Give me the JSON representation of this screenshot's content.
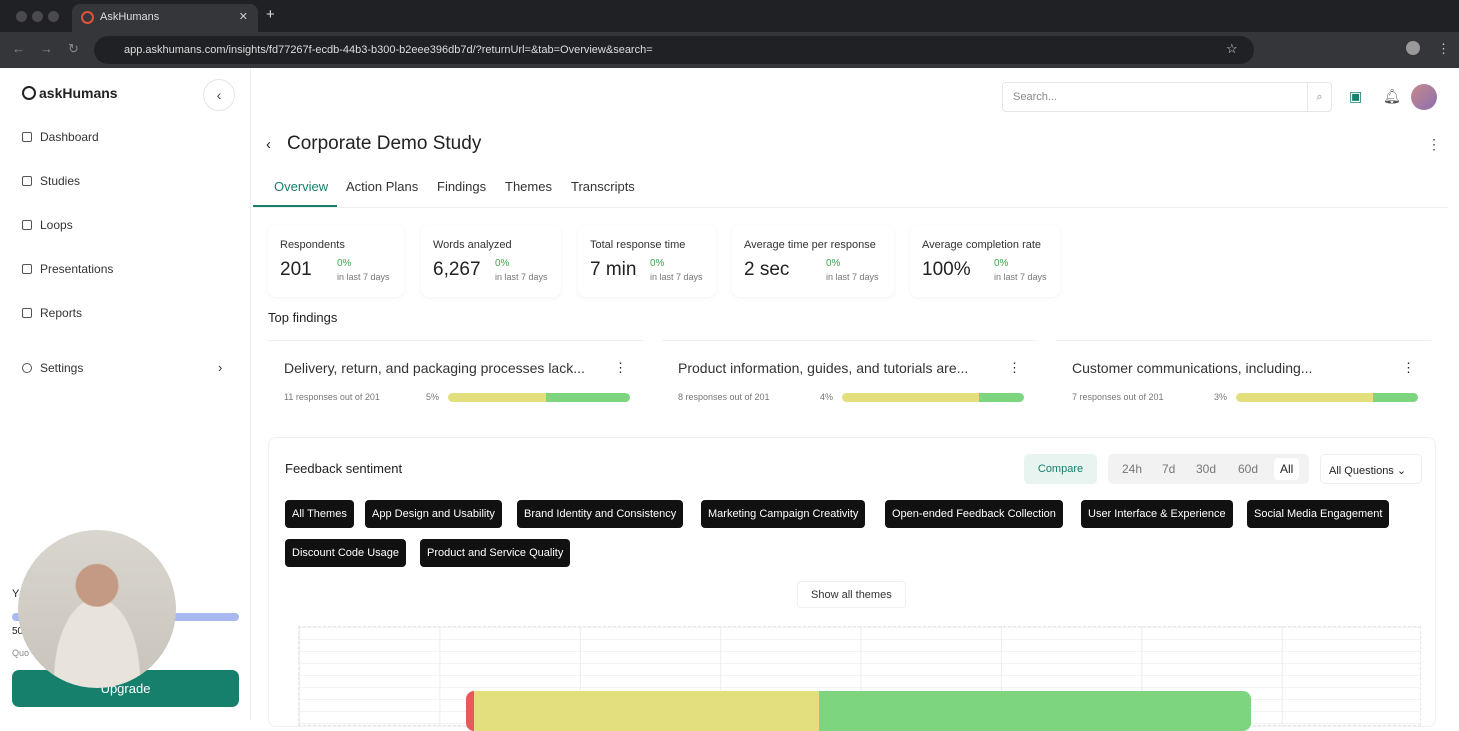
{
  "browser": {
    "tab_title": "AskHumans",
    "url": "app.askhumans.com/insights/fd77267f-ecdb-44b3-b300-b2eee396db7d/?returnUrl=&tab=Overview&search="
  },
  "sidebar": {
    "logo": "askHumans",
    "items": [
      {
        "label": "Dashboard"
      },
      {
        "label": "Studies"
      },
      {
        "label": "Loops"
      },
      {
        "label": "Presentations"
      },
      {
        "label": "Reports"
      },
      {
        "label": "Settings"
      }
    ],
    "quota_partial_1": "Y",
    "quota_partial_2": "50",
    "quota_partial_3": "Quo",
    "quota_fill": 1.0,
    "upgrade": "Upgrade"
  },
  "header": {
    "search_placeholder": "Search..."
  },
  "page": {
    "title": "Corporate Demo Study",
    "tabs": [
      "Overview",
      "Action Plans",
      "Findings",
      "Themes",
      "Transcripts"
    ],
    "active_tab": "Overview"
  },
  "stats": [
    {
      "label": "Respondents",
      "value": "201",
      "change": "0%",
      "period": "in last 7 days"
    },
    {
      "label": "Words analyzed",
      "value": "6,267",
      "change": "0%",
      "period": "in last 7 days"
    },
    {
      "label": "Total response time",
      "value": "7 min",
      "change": "0%",
      "period": "in last 7 days"
    },
    {
      "label": "Average time per response",
      "value": "2 sec",
      "change": "0%",
      "period": "in last 7 days"
    },
    {
      "label": "Average completion rate",
      "value": "100%",
      "change": "0%",
      "period": "in last 7 days"
    }
  ],
  "top_findings": {
    "heading": "Top findings",
    "items": [
      {
        "title": "Delivery, return, and packaging processes lack...",
        "responses": "11 responses out of 201",
        "percent": "5%",
        "neutral": 0.54,
        "positive": 0.46
      },
      {
        "title": "Product information, guides, and tutorials are...",
        "responses": "8 responses out of 201",
        "percent": "4%",
        "neutral": 0.75,
        "positive": 0.25
      },
      {
        "title": "Customer communications, including...",
        "responses": "7 responses out of 201",
        "percent": "3%",
        "neutral": 0.75,
        "positive": 0.25
      }
    ]
  },
  "sentiment": {
    "heading": "Feedback sentiment",
    "compare": "Compare",
    "ranges": [
      "24h",
      "7d",
      "30d",
      "60d",
      "All"
    ],
    "active_range": "All",
    "question_select": "All Questions",
    "themes": [
      "All Themes",
      "App Design and Usability",
      "Brand Identity and Consistency",
      "Marketing Campaign Creativity",
      "Open-ended Feedback Collection",
      "User Interface & Experience",
      "Social Media Engagement",
      "Discount Code Usage",
      "Product and Service Quality"
    ],
    "show_all": "Show all themes",
    "bar": {
      "negative": 0.01,
      "neutral": 0.44,
      "positive": 0.55
    }
  },
  "colors": {
    "brand": "#17806d",
    "positive": "#7dd67f",
    "neutral": "#e3df7c",
    "negative": "#e85a5a"
  }
}
